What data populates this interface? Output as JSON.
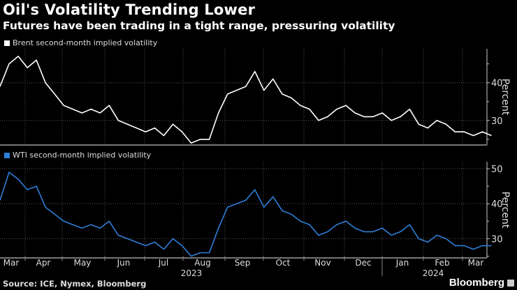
{
  "title": "Oil's Volatility Trending Lower",
  "subtitle": "Futures have been trading in a tight range, pressuring volatility",
  "source": "Source: ICE, Nymex, Bloomberg",
  "brand": "Bloomberg",
  "colors": {
    "brent": "#ffffff",
    "wti": "#2f7ed8",
    "grid": "#555555",
    "axis": "#cccccc"
  },
  "chart_data": [
    {
      "type": "line",
      "title": "Brent second-month implied volatility",
      "ylabel": "Percent",
      "ylim": [
        23.5,
        49
      ],
      "yticks": [
        30,
        40
      ],
      "xlim": [
        0,
        53.5
      ],
      "x_unit": "weeks since 2023-03-01",
      "xtick_labels": [
        "Mar",
        "Apr",
        "May",
        "Jun",
        "Jul",
        "Aug",
        "Sep",
        "Oct",
        "Nov",
        "Dec",
        "Jan",
        "Feb",
        "Mar"
      ],
      "year_labels": [
        "2023",
        "2024"
      ],
      "grid": true,
      "legend": "top-left",
      "series": [
        {
          "name": "Brent second-month implied volatility",
          "values": [
            39,
            45,
            47,
            44,
            46,
            40,
            37,
            34,
            33,
            32,
            33,
            32,
            34,
            30,
            29,
            28,
            27,
            28,
            26,
            29,
            27,
            24,
            25,
            25,
            32,
            37,
            38,
            39,
            43,
            38,
            41,
            37,
            36,
            34,
            33,
            30,
            31,
            33,
            34,
            32,
            31,
            31,
            32,
            30,
            31,
            33,
            29,
            28,
            30,
            29,
            27,
            27,
            26,
            27,
            26
          ]
        }
      ]
    },
    {
      "type": "line",
      "title": "WTI second-month implied volatility",
      "ylabel": "Percent",
      "ylim": [
        24.5,
        52
      ],
      "yticks": [
        30,
        40,
        50
      ],
      "xlim": [
        0,
        53.5
      ],
      "x_unit": "weeks since 2023-03-01",
      "xtick_labels": [
        "Mar",
        "Apr",
        "May",
        "Jun",
        "Jul",
        "Aug",
        "Sep",
        "Oct",
        "Nov",
        "Dec",
        "Jan",
        "Feb",
        "Mar"
      ],
      "year_labels": [
        "2023",
        "2024"
      ],
      "grid": true,
      "legend": "top-left",
      "series": [
        {
          "name": "WTI second-month implied volatility",
          "values": [
            41,
            49,
            47,
            44,
            45,
            39,
            37,
            35,
            34,
            33,
            34,
            33,
            35,
            31,
            30,
            29,
            28,
            29,
            27,
            30,
            28,
            25,
            26,
            26,
            33,
            39,
            40,
            41,
            44,
            39,
            42,
            38,
            37,
            35,
            34,
            31,
            32,
            34,
            35,
            33,
            32,
            32,
            33,
            31,
            32,
            34,
            30,
            29,
            31,
            30,
            28,
            28,
            27,
            28,
            28
          ]
        }
      ]
    }
  ]
}
